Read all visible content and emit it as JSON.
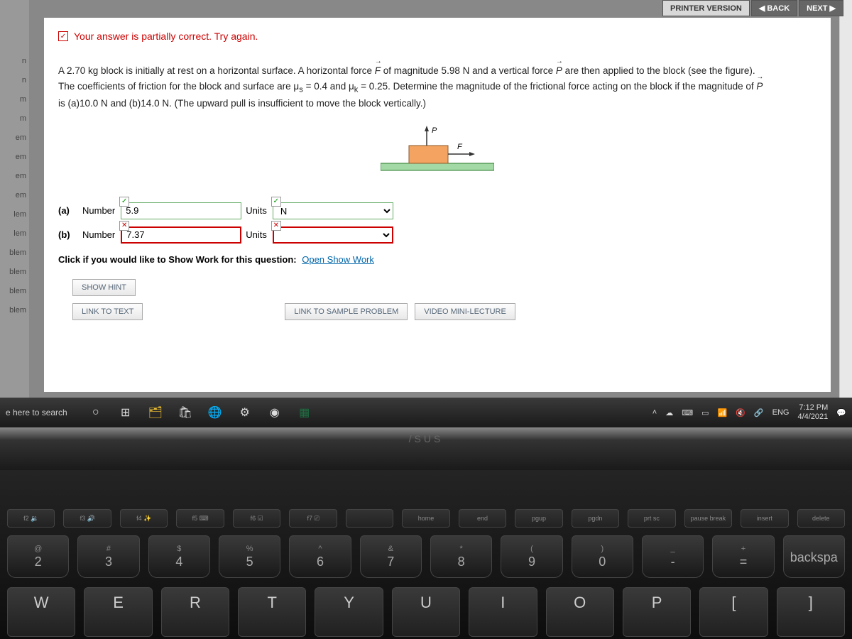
{
  "topbar": {
    "printer": "PRINTER VERSION",
    "back": "◀ BACK",
    "next": "NEXT ▶"
  },
  "sidebar": {
    "items": [
      "n",
      "n",
      "m",
      "m",
      "em",
      "em",
      "em",
      "em",
      "lem",
      "lem",
      "blem",
      "blem",
      "blem",
      "blem"
    ]
  },
  "status": {
    "check": "✓",
    "text": "Your answer is partially correct.  Try again."
  },
  "problem": {
    "line1a": "A 2.70 kg block is initially at rest on a horizontal surface. A horizontal force ",
    "F": "F",
    "line1b": " of magnitude 5.98 N and a vertical force ",
    "P": "P",
    "line1c": " are then applied to the block (see the figure).",
    "line2a": "The coefficients of friction for the block and surface are μ",
    "sub_s": "s",
    "line2b": " = 0.4 and μ",
    "sub_k": "k",
    "line2c": " = 0.25. Determine the magnitude of the frictional force acting on the block if the magnitude of ",
    "P2": "P",
    "line3": "is (a)10.0 N and (b)14.0 N. (The upward pull is insufficient to move the block vertically.)"
  },
  "diagram": {
    "block_fill": "#f4a460",
    "ground_fill": "#a3d9a5",
    "P_label": "P",
    "F_label": "F"
  },
  "answers": {
    "a": {
      "label": "(a)",
      "numlbl": "Number",
      "value": "5.9",
      "unitslbl": "Units",
      "unit": "N",
      "num_state": "correct",
      "unit_state": "correct"
    },
    "b": {
      "label": "(b)",
      "numlbl": "Number",
      "value": "7.37",
      "unitslbl": "Units",
      "unit": "",
      "num_state": "wrong",
      "unit_state": "wrong"
    }
  },
  "showwork": {
    "prompt": "Click if you would like to Show Work for this question:",
    "link": "Open Show Work"
  },
  "buttons": {
    "hint": "SHOW HINT",
    "linktext": "LINK TO TEXT",
    "sample": "LINK TO SAMPLE PROBLEM",
    "video": "VIDEO MINI-LECTURE"
  },
  "taskbar": {
    "search": "e here to search",
    "lang": "ENG",
    "time": "7:12 PM",
    "date": "4/4/2021"
  },
  "keyboard": {
    "fn": [
      "f2 🔉",
      "f3 🔊",
      "f4 ✨",
      "f5 ⌨",
      "f6 ☑",
      "f7 ⎚",
      "",
      "home",
      "end",
      "pgup",
      "pgdn",
      "prt sc",
      "pause break",
      "insert",
      "delete"
    ],
    "num": [
      {
        "s": "@",
        "n": "2"
      },
      {
        "s": "#",
        "n": "3"
      },
      {
        "s": "$",
        "n": "4"
      },
      {
        "s": "%",
        "n": "5"
      },
      {
        "s": "^",
        "n": "6"
      },
      {
        "s": "&",
        "n": "7"
      },
      {
        "s": "*",
        "n": "8"
      },
      {
        "s": "(",
        "n": "9"
      },
      {
        "s": ")",
        "n": "0"
      },
      {
        "s": "_",
        "n": "-"
      },
      {
        "s": "+",
        "n": "="
      },
      {
        "s": "",
        "n": "backspa"
      }
    ],
    "letters": [
      "W",
      "E",
      "R",
      "T",
      "Y",
      "U",
      "I",
      "O",
      "P",
      "[",
      "]"
    ]
  },
  "logo": "/SUS"
}
